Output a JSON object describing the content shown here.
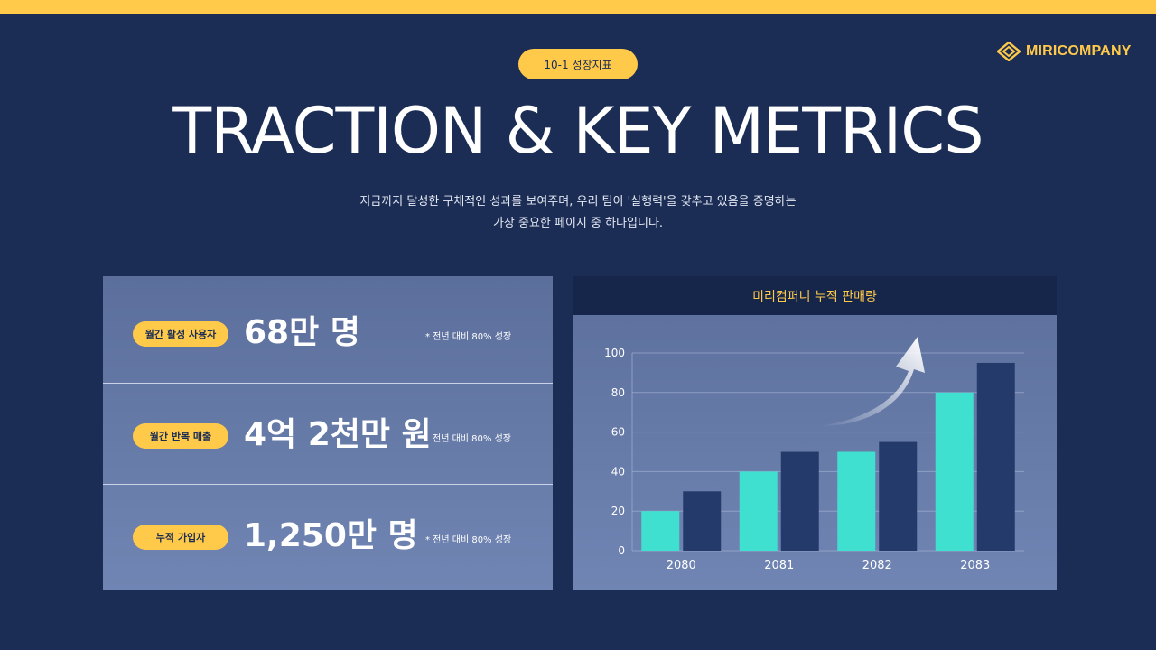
{
  "brand": {
    "name": "MIRICOMPANY"
  },
  "section_label": "10-1 성장지표",
  "title": "TRACTION & KEY METRICS",
  "subtitle": {
    "line1": "지금까지 달성한 구체적인 성과를 보여주며, 우리 팀이 '실행력'을 갖추고 있음을 증명하는",
    "line2": "가장 중요한 페이지 중 하나입니다."
  },
  "metrics": [
    {
      "label": "월간 활성 사용자",
      "value": "68만 명",
      "note": "* 전년 대비 80% 성장"
    },
    {
      "label": "월간 반복 매출",
      "value": "4억 2천만 원",
      "note": "전년 대비 80% 성장"
    },
    {
      "label": "누적 가입자",
      "value": "1,250만 명",
      "note": "* 전년 대비 80% 성장"
    }
  ],
  "colors": {
    "accent": "#ffc94a",
    "background": "#1b2d55",
    "series_a": "#3fe0d0",
    "series_b": "#243a6b"
  },
  "chart_data": {
    "type": "bar",
    "title": "미리컴퍼니 누적 판매량",
    "categories": [
      "2080",
      "2081",
      "2082",
      "2083"
    ],
    "series": [
      {
        "values": [
          20,
          40,
          50,
          80
        ]
      },
      {
        "values": [
          30,
          50,
          55,
          95
        ]
      }
    ],
    "ylim": [
      0,
      100
    ],
    "yticks": [
      0,
      20,
      40,
      60,
      80,
      100
    ],
    "grid": true,
    "annotation": "upward-arrow"
  }
}
